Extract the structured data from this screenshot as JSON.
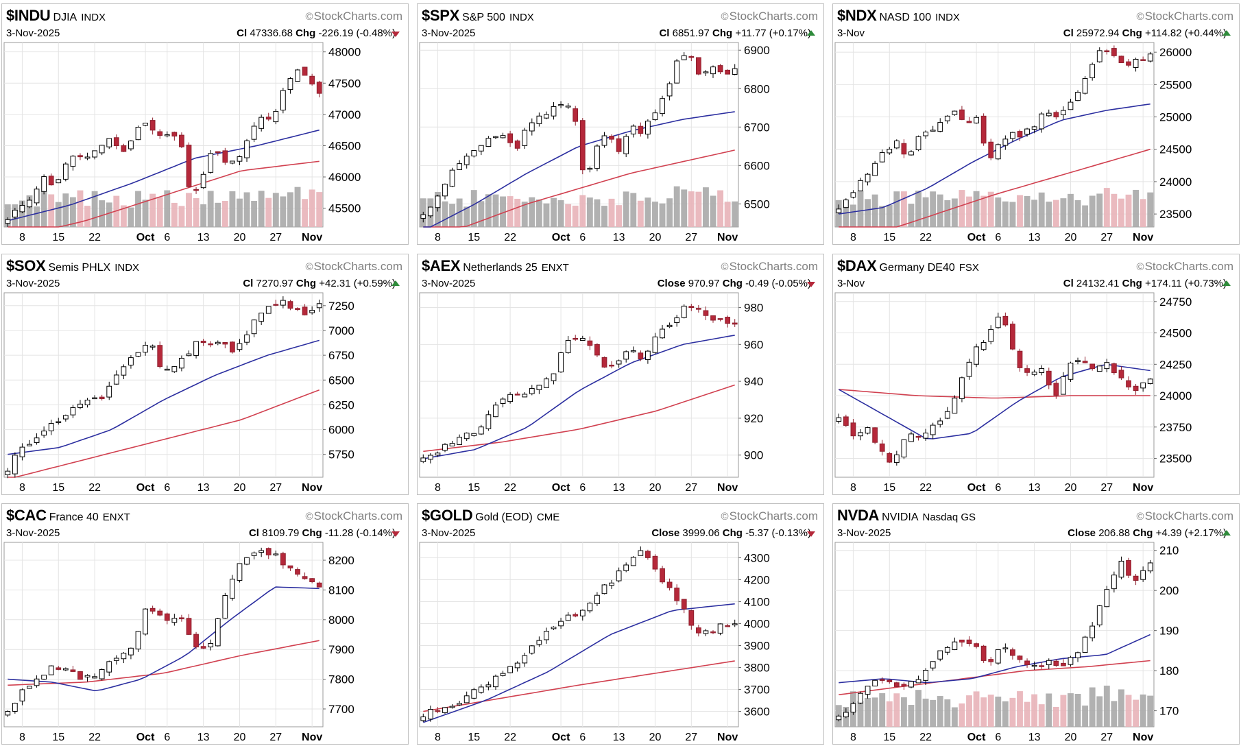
{
  "page": {
    "provider": "StockCharts.com"
  },
  "colors": {
    "up_candle": "#ffffff",
    "down_candle": "#b5283a",
    "sma_short": "#2c2fa0",
    "sma_long": "#d14150",
    "volume_up": "#a8a8a8",
    "volume_down": "#e8b3b8",
    "grid": "#e4e4e4"
  },
  "chart_data": [
    {
      "type": "candlestick",
      "symbol": "$INDU",
      "name": "DJIA",
      "exchange": "INDX",
      "date": "3-Nov-2025",
      "close_label": "Cl",
      "close": "47336.68",
      "change": "-226.19 (-0.48%)",
      "direction": "down",
      "y_ticks": [
        "48000",
        "47500",
        "47000",
        "46500",
        "46000",
        "45500"
      ],
      "y_tick_values": [
        48000,
        47500,
        47000,
        46500,
        46000,
        45500
      ],
      "ylim": [
        45200,
        48150
      ],
      "x_labels": [
        {
          "text": "8",
          "bar": 2,
          "bold": false
        },
        {
          "text": "15",
          "bar": 7,
          "bold": false
        },
        {
          "text": "22",
          "bar": 12,
          "bold": false
        },
        {
          "text": "Oct",
          "bar": 19,
          "bold": true
        },
        {
          "text": "6",
          "bar": 22,
          "bold": false
        },
        {
          "text": "13",
          "bar": 27,
          "bold": false
        },
        {
          "text": "20",
          "bar": 32,
          "bold": false
        },
        {
          "text": "27",
          "bar": 37,
          "bold": false
        },
        {
          "text": "Nov",
          "bar": 42,
          "bold": true
        }
      ],
      "anchors": [
        45350,
        45500,
        45650,
        46000,
        45800,
        46200,
        46400,
        46300,
        46500,
        46600,
        46400,
        46700,
        46850,
        46600,
        46750,
        46500,
        45600,
        46100,
        46500,
        46200,
        46300,
        46700,
        47000,
        46850,
        47500,
        47700,
        47550,
        47336.68
      ],
      "sma_short": [
        45300,
        45550,
        45900,
        46300,
        46500,
        46750
      ],
      "sma_long": [
        45000,
        45300,
        45700,
        46100,
        46250
      ],
      "has_volume": true
    },
    {
      "type": "candlestick",
      "symbol": "$SPX",
      "name": "S&P 500",
      "exchange": "INDX",
      "date": "3-Nov-2025",
      "close_label": "Cl",
      "close": "6851.97",
      "change": "+11.77 (+0.17%)",
      "direction": "up",
      "y_ticks": [
        "6900",
        "6800",
        "6700",
        "6600",
        "6500"
      ],
      "y_tick_values": [
        6900,
        6800,
        6700,
        6600,
        6500
      ],
      "ylim": [
        6440,
        6920
      ],
      "x_labels": [
        {
          "text": "8",
          "bar": 2,
          "bold": false
        },
        {
          "text": "15",
          "bar": 7,
          "bold": false
        },
        {
          "text": "22",
          "bar": 12,
          "bold": false
        },
        {
          "text": "Oct",
          "bar": 19,
          "bold": true
        },
        {
          "text": "6",
          "bar": 22,
          "bold": false
        },
        {
          "text": "13",
          "bar": 27,
          "bold": false
        },
        {
          "text": "20",
          "bar": 32,
          "bold": false
        },
        {
          "text": "27",
          "bar": 37,
          "bold": false
        },
        {
          "text": "Nov",
          "bar": 42,
          "bold": true
        }
      ],
      "anchors": [
        6480,
        6510,
        6560,
        6600,
        6630,
        6650,
        6680,
        6670,
        6640,
        6700,
        6720,
        6740,
        6760,
        6750,
        6560,
        6650,
        6680,
        6640,
        6700,
        6690,
        6740,
        6790,
        6870,
        6890,
        6830,
        6860,
        6840,
        6851.97
      ],
      "sma_short": [
        6430,
        6500,
        6580,
        6650,
        6690,
        6720,
        6740
      ],
      "sma_long": [
        6400,
        6500,
        6580,
        6640
      ],
      "has_volume": true
    },
    {
      "type": "candlestick",
      "symbol": "$NDX",
      "name": "NASD 100",
      "exchange": "INDX",
      "date": "3-Nov",
      "close_label": "Cl",
      "close": "25972.94",
      "change": "+114.82 (+0.44%)",
      "direction": "up",
      "y_ticks": [
        "26000",
        "25500",
        "25000",
        "24500",
        "24000",
        "23500"
      ],
      "y_tick_values": [
        26000,
        25500,
        25000,
        24500,
        24000,
        23500
      ],
      "ylim": [
        23300,
        26150
      ],
      "x_labels": [
        {
          "text": "8",
          "bar": 2,
          "bold": false
        },
        {
          "text": "15",
          "bar": 7,
          "bold": false
        },
        {
          "text": "22",
          "bar": 12,
          "bold": false
        },
        {
          "text": "Oct",
          "bar": 19,
          "bold": true
        },
        {
          "text": "6",
          "bar": 22,
          "bold": false
        },
        {
          "text": "13",
          "bar": 27,
          "bold": false
        },
        {
          "text": "20",
          "bar": 32,
          "bold": false
        },
        {
          "text": "27",
          "bar": 37,
          "bold": false
        },
        {
          "text": "Nov",
          "bar": 42,
          "bold": true
        }
      ],
      "anchors": [
        23600,
        23800,
        24000,
        24200,
        24500,
        24600,
        24400,
        24700,
        24800,
        25000,
        25100,
        24900,
        25050,
        24300,
        24600,
        24800,
        24700,
        24900,
        25100,
        24950,
        25200,
        25500,
        25800,
        26100,
        25900,
        25800,
        25900,
        25972.94
      ],
      "sma_short": [
        23500,
        23600,
        23900,
        24300,
        24650,
        24950,
        25100,
        25200
      ],
      "sma_long": [
        23000,
        23400,
        23800,
        24150,
        24500
      ],
      "has_volume": true
    },
    {
      "type": "candlestick",
      "symbol": "$SOX",
      "name": "Semis PHLX",
      "exchange": "INDX",
      "date": "3-Nov-2025",
      "close_label": "Cl",
      "close": "7270.97",
      "change": "+42.31 (+0.59%)",
      "direction": "up",
      "y_ticks": [
        "7250",
        "7000",
        "6750",
        "6500",
        "6250",
        "6000",
        "5750"
      ],
      "y_tick_values": [
        7250,
        7000,
        6750,
        6500,
        6250,
        6000,
        5750
      ],
      "ylim": [
        5520,
        7380
      ],
      "x_labels": [
        {
          "text": "8",
          "bar": 2,
          "bold": false
        },
        {
          "text": "15",
          "bar": 7,
          "bold": false
        },
        {
          "text": "22",
          "bar": 12,
          "bold": false
        },
        {
          "text": "Oct",
          "bar": 19,
          "bold": true
        },
        {
          "text": "6",
          "bar": 22,
          "bold": false
        },
        {
          "text": "13",
          "bar": 27,
          "bold": false
        },
        {
          "text": "20",
          "bar": 32,
          "bold": false
        },
        {
          "text": "27",
          "bar": 37,
          "bold": false
        },
        {
          "text": "Nov",
          "bar": 42,
          "bold": true
        }
      ],
      "anchors": [
        5600,
        5800,
        5900,
        6000,
        6050,
        6200,
        6250,
        6300,
        6350,
        6550,
        6700,
        6800,
        6850,
        6550,
        6650,
        6750,
        6900,
        6850,
        6900,
        6750,
        7000,
        7150,
        7250,
        7300,
        7200,
        7150,
        7270.97
      ],
      "sma_short": [
        5750,
        5820,
        6000,
        6300,
        6550,
        6750,
        6900
      ],
      "sma_long": [
        5500,
        5700,
        5900,
        6100,
        6400
      ],
      "has_volume": false
    },
    {
      "type": "candlestick",
      "symbol": "$AEX",
      "name": "Netherlands 25",
      "exchange": "ENXT",
      "date": "3-Nov-2025",
      "close_label": "Close",
      "close": "970.97",
      "change": "-0.49 (-0.05%)",
      "direction": "down",
      "y_ticks": [
        "980",
        "960",
        "940",
        "920",
        "900"
      ],
      "y_tick_values": [
        980,
        960,
        940,
        920,
        900
      ],
      "ylim": [
        888,
        988
      ],
      "x_labels": [
        {
          "text": "8",
          "bar": 2,
          "bold": false
        },
        {
          "text": "15",
          "bar": 7,
          "bold": false
        },
        {
          "text": "22",
          "bar": 12,
          "bold": false
        },
        {
          "text": "Oct",
          "bar": 19,
          "bold": true
        },
        {
          "text": "6",
          "bar": 22,
          "bold": false
        },
        {
          "text": "13",
          "bar": 27,
          "bold": false
        },
        {
          "text": "20",
          "bar": 32,
          "bold": false
        },
        {
          "text": "27",
          "bar": 37,
          "bold": false
        },
        {
          "text": "Nov",
          "bar": 42,
          "bold": true
        }
      ],
      "anchors": [
        900,
        902,
        906,
        912,
        910,
        920,
        930,
        932,
        934,
        938,
        945,
        960,
        964,
        958,
        946,
        952,
        956,
        950,
        966,
        970,
        980,
        978,
        976,
        972,
        970.97
      ],
      "sma_short": [
        898,
        903,
        915,
        935,
        950,
        960,
        965
      ],
      "sma_long": [
        902,
        907,
        914,
        924,
        938
      ],
      "has_volume": false
    },
    {
      "type": "candlestick",
      "symbol": "$DAX",
      "name": "Germany DE40",
      "exchange": "FSX",
      "date": "3-Nov",
      "close_label": "Cl",
      "close": "24132.41",
      "change": "+174.11 (+0.73%)",
      "direction": "up",
      "y_ticks": [
        "24750",
        "24500",
        "24250",
        "24000",
        "23750",
        "23500"
      ],
      "y_tick_values": [
        24750,
        24500,
        24250,
        24000,
        23750,
        23500
      ],
      "ylim": [
        23350,
        24820
      ],
      "x_labels": [
        {
          "text": "8",
          "bar": 2,
          "bold": false
        },
        {
          "text": "15",
          "bar": 7,
          "bold": false
        },
        {
          "text": "22",
          "bar": 12,
          "bold": false
        },
        {
          "text": "Oct",
          "bar": 19,
          "bold": true
        },
        {
          "text": "6",
          "bar": 22,
          "bold": false
        },
        {
          "text": "13",
          "bar": 27,
          "bold": false
        },
        {
          "text": "20",
          "bar": 32,
          "bold": false
        },
        {
          "text": "27",
          "bar": 37,
          "bold": false
        },
        {
          "text": "Nov",
          "bar": 42,
          "bold": true
        }
      ],
      "anchors": [
        23800,
        23700,
        23750,
        23600,
        23450,
        23700,
        23650,
        23750,
        23850,
        24100,
        24350,
        24450,
        24700,
        24300,
        24150,
        24200,
        24000,
        24250,
        24300,
        24200,
        24250,
        24100,
        24050,
        24132.41
      ],
      "sma_short": [
        24050,
        23850,
        23650,
        23700,
        23950,
        24150,
        24250,
        24200
      ],
      "sma_long": [
        24050,
        24000,
        23980,
        24000,
        24000
      ],
      "has_volume": false
    },
    {
      "type": "candlestick",
      "symbol": "$CAC",
      "name": "France 40",
      "exchange": "ENXT",
      "date": "3-Nov-2025",
      "close_label": "Cl",
      "close": "8109.79",
      "change": "-11.28 (-0.14%)",
      "direction": "down",
      "y_ticks": [
        "8200",
        "8100",
        "8000",
        "7900",
        "7800",
        "7700"
      ],
      "y_tick_values": [
        8200,
        8100,
        8000,
        7900,
        7800,
        7700
      ],
      "ylim": [
        7640,
        8260
      ],
      "x_labels": [
        {
          "text": "8",
          "bar": 2,
          "bold": false
        },
        {
          "text": "15",
          "bar": 7,
          "bold": false
        },
        {
          "text": "22",
          "bar": 12,
          "bold": false
        },
        {
          "text": "Oct",
          "bar": 19,
          "bold": true
        },
        {
          "text": "6",
          "bar": 22,
          "bold": false
        },
        {
          "text": "13",
          "bar": 27,
          "bold": false
        },
        {
          "text": "20",
          "bar": 32,
          "bold": false
        },
        {
          "text": "27",
          "bar": 37,
          "bold": false
        },
        {
          "text": "Nov",
          "bar": 42,
          "bold": true
        }
      ],
      "anchors": [
        7700,
        7760,
        7800,
        7850,
        7820,
        7800,
        7830,
        7870,
        7900,
        8050,
        8000,
        8020,
        7900,
        7920,
        8100,
        8200,
        8230,
        8220,
        8180,
        8140,
        8109.79
      ],
      "sma_short": [
        7800,
        7790,
        7760,
        7800,
        7880,
        8000,
        8110,
        8105
      ],
      "sma_long": [
        7780,
        7790,
        7820,
        7880,
        7930
      ],
      "has_volume": false
    },
    {
      "type": "candlestick",
      "symbol": "$GOLD",
      "name": "Gold (EOD)",
      "exchange": "CME",
      "date": "3-Nov-2025",
      "close_label": "Close",
      "close": "3999.06",
      "change": "-5.37 (-0.13%)",
      "direction": "down",
      "y_ticks": [
        "4300",
        "4200",
        "4100",
        "4000",
        "3900",
        "3800",
        "3700",
        "3600"
      ],
      "y_tick_values": [
        4300,
        4200,
        4100,
        4000,
        3900,
        3800,
        3700,
        3600
      ],
      "ylim": [
        3530,
        4370
      ],
      "x_labels": [
        {
          "text": "8",
          "bar": 2,
          "bold": false
        },
        {
          "text": "15",
          "bar": 7,
          "bold": false
        },
        {
          "text": "22",
          "bar": 12,
          "bold": false
        },
        {
          "text": "Oct",
          "bar": 19,
          "bold": true
        },
        {
          "text": "6",
          "bar": 22,
          "bold": false
        },
        {
          "text": "13",
          "bar": 27,
          "bold": false
        },
        {
          "text": "20",
          "bar": 32,
          "bold": false
        },
        {
          "text": "27",
          "bar": 37,
          "bold": false
        },
        {
          "text": "Nov",
          "bar": 42,
          "bold": true
        }
      ],
      "anchors": [
        3580,
        3620,
        3650,
        3700,
        3760,
        3820,
        3900,
        3970,
        4030,
        4070,
        4180,
        4250,
        4340,
        4200,
        4100,
        3950,
        3980,
        3999.06
      ],
      "sma_short": [
        3550,
        3650,
        3780,
        3950,
        4060,
        4090
      ],
      "sma_long": [
        3600,
        3720,
        3830
      ],
      "has_volume": false
    },
    {
      "type": "candlestick",
      "symbol": "NVDA",
      "name": "NVIDIA",
      "exchange": "Nasdaq GS",
      "date": "3-Nov-2025",
      "close_label": "Close",
      "close": "206.88",
      "change": "+4.39 (+2.17%)",
      "direction": "up",
      "y_ticks": [
        "210",
        "200",
        "190",
        "180",
        "170"
      ],
      "y_tick_values": [
        210,
        200,
        190,
        180,
        170
      ],
      "ylim": [
        166,
        212
      ],
      "x_labels": [
        {
          "text": "8",
          "bar": 2,
          "bold": false
        },
        {
          "text": "15",
          "bar": 7,
          "bold": false
        },
        {
          "text": "22",
          "bar": 12,
          "bold": false
        },
        {
          "text": "Oct",
          "bar": 19,
          "bold": true
        },
        {
          "text": "6",
          "bar": 22,
          "bold": false
        },
        {
          "text": "13",
          "bar": 27,
          "bold": false
        },
        {
          "text": "20",
          "bar": 32,
          "bold": false
        },
        {
          "text": "27",
          "bar": 37,
          "bold": false
        },
        {
          "text": "Nov",
          "bar": 42,
          "bold": true
        }
      ],
      "anchors": [
        168,
        172,
        177,
        178,
        176,
        177,
        180,
        185,
        188,
        187,
        182,
        186,
        183,
        181,
        182,
        181,
        184,
        190,
        200,
        207,
        202,
        206.88
      ],
      "sma_short": [
        177,
        178,
        177,
        178,
        181,
        183,
        184,
        189
      ],
      "sma_long": [
        174,
        176,
        178,
        180,
        181,
        182.5
      ],
      "has_volume": true
    }
  ]
}
